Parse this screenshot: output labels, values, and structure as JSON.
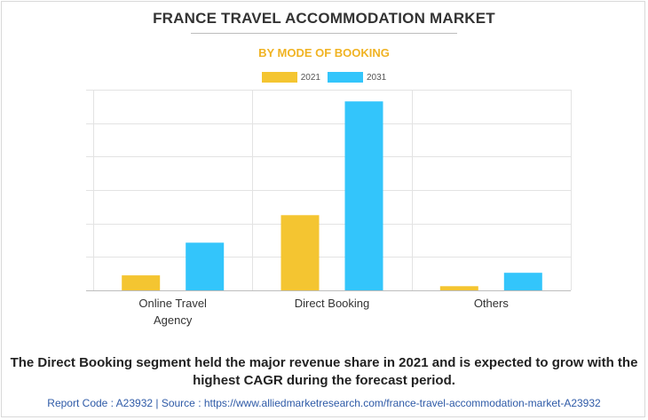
{
  "title": "FRANCE TRAVEL ACCOMMODATION MARKET",
  "subtitle": "BY MODE OF BOOKING",
  "caption": "The Direct Booking segment held the major revenue share in 2021 and is expected to grow with the highest CAGR during the forecast period.",
  "footer": "Report Code : A23932  |  Source : https://www.alliedmarketresearch.com/france-travel-accommodation-market-A23932",
  "colors": {
    "series_2021": "#f4c531",
    "series_2031": "#33c5fb",
    "subtitle": "#f0b323",
    "footer": "#2e5aa7"
  },
  "chart_data": {
    "type": "bar",
    "categories": [
      "Online Travel Agency",
      "Direct Booking",
      "Others"
    ],
    "category_labels": [
      [
        "Online Travel",
        "Agency"
      ],
      [
        "Direct Booking"
      ],
      [
        "Others"
      ]
    ],
    "series": [
      {
        "name": "2021",
        "values": [
          0.9,
          4.5,
          0.25
        ],
        "color": "#f4c531"
      },
      {
        "name": "2031",
        "values": [
          2.85,
          11.3,
          1.05
        ],
        "color": "#33c5fb"
      }
    ],
    "ylim": [
      0,
      12
    ],
    "ytick_step": 2,
    "y_tick_labels_shown": false,
    "grid": true,
    "legend_position": "top-center",
    "xlabel": "",
    "ylabel": ""
  }
}
